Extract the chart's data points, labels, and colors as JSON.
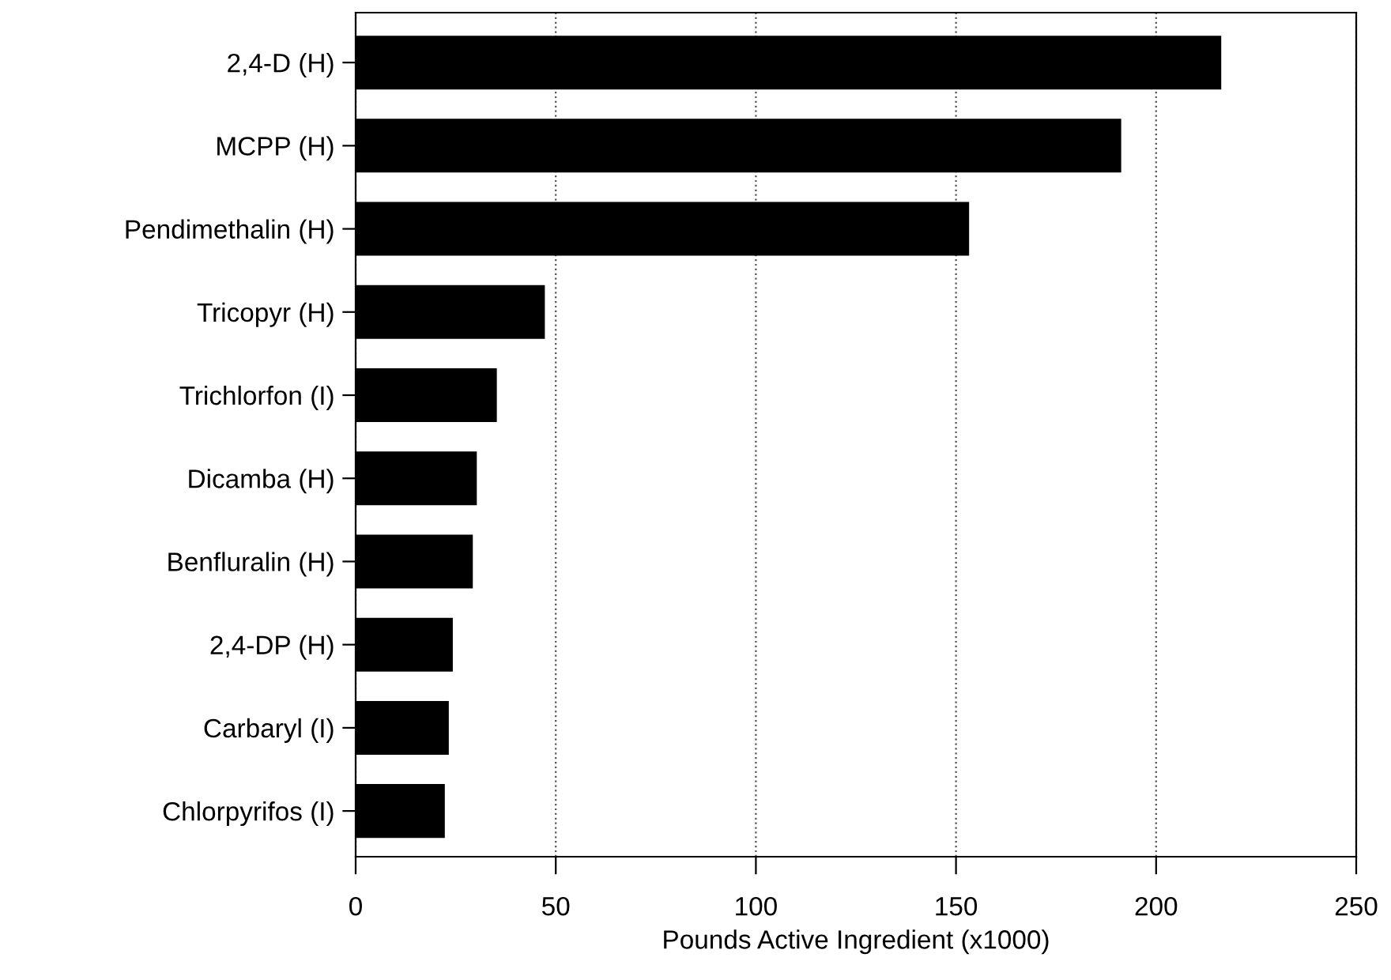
{
  "chart_data": {
    "type": "bar",
    "orientation": "horizontal",
    "xlabel": "Pounds Active Ingredient (x1000)",
    "categories": [
      "2,4-D (H)",
      "MCPP (H)",
      "Pendimethalin (H)",
      "Tricopyr (H)",
      "Trichlorfon (I)",
      "Dicamba (H)",
      "Benfluralin (H)",
      "2,4-DP (H)",
      "Carbaryl (I)",
      "Chlorpyrifos (I)"
    ],
    "values": [
      216,
      191,
      153,
      47,
      35,
      30,
      29,
      24,
      23,
      22
    ],
    "color": "#000000",
    "xlim": [
      0,
      250
    ],
    "xticks": [
      0,
      50,
      100,
      150,
      200,
      250
    ],
    "grid": "x",
    "line_style": "dotted"
  }
}
